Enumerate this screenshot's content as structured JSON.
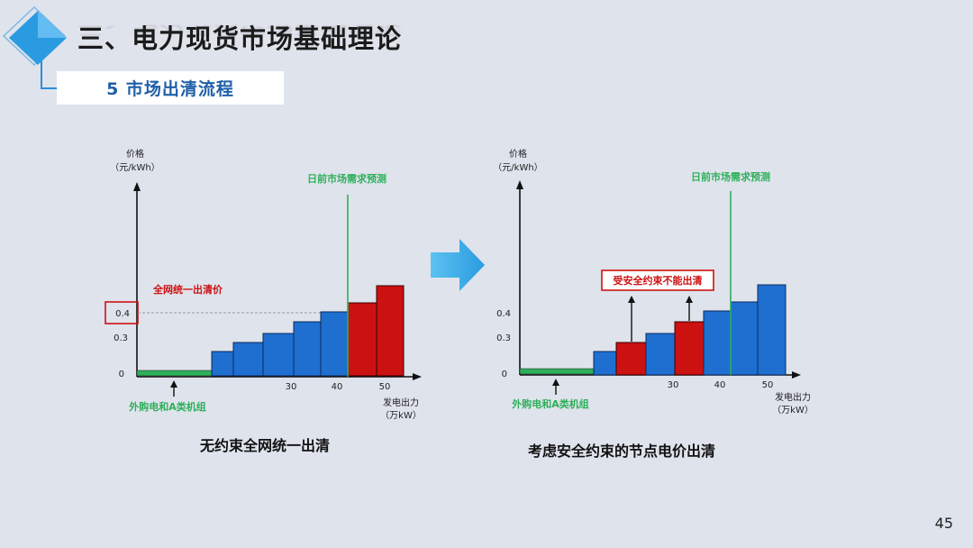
{
  "header": {
    "title": "三、电力现货市场基础理论",
    "subtitle": "5 市场出清流程"
  },
  "colors": {
    "blue": "#1f6fd0",
    "red": "#cc1111",
    "green": "#2eb05a",
    "accent": "#2a9be0"
  },
  "icons": {
    "arrow": "right-arrow-icon",
    "logo": "diamond-logo-icon"
  },
  "chart_data": [
    {
      "type": "bar",
      "title": "无约束全网统一出清",
      "ylabel": "价格",
      "yunit": "（元/kWh）",
      "xlabel": "发电出力",
      "xunit": "（万kW）",
      "demand_label": "日前市场需求预测",
      "supply_label": "外购电和A类机组",
      "annotation": "全网统一出清价",
      "yticks": [
        "0",
        "0.3",
        "0.4"
      ],
      "xticks": [
        "30",
        "40",
        "50"
      ]
    },
    {
      "type": "bar",
      "title": "考虑安全约束的节点电价出清",
      "ylabel": "价格",
      "yunit": "（元/kWh）",
      "xlabel": "发电出力",
      "xunit": "（万kW）",
      "demand_label": "日前市场需求预测",
      "supply_label": "外购电和A类机组",
      "annotation": "受安全约束不能出清",
      "yticks": [
        "0",
        "0.3",
        "0.4"
      ],
      "xticks": [
        "30",
        "40",
        "50"
      ]
    }
  ],
  "page": {
    "number": "45"
  }
}
